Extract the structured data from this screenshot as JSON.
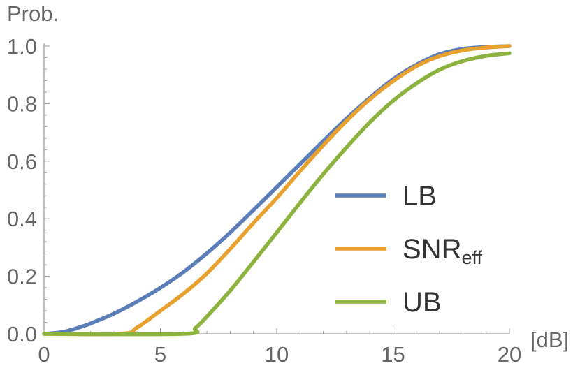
{
  "chart_data": {
    "type": "line",
    "title": "",
    "xlabel": "[dB]",
    "ylabel": "Prob.",
    "xlim": [
      0,
      20
    ],
    "ylim": [
      0,
      1
    ],
    "x_ticks": [
      "0",
      "5",
      "10",
      "15",
      "20"
    ],
    "y_ticks": [
      "0.0",
      "0.2",
      "0.4",
      "0.6",
      "0.8",
      "1.0"
    ],
    "legend_position": "right",
    "grid": false,
    "series": [
      {
        "name": "LB",
        "name_sub": "",
        "color": "#5B7DB8",
        "x": [
          0,
          0.5,
          1,
          1.5,
          2,
          3,
          4,
          5,
          6,
          7,
          8,
          9,
          10,
          11,
          12,
          13,
          14,
          15,
          16,
          17,
          18,
          19,
          20
        ],
        "y": [
          0.0,
          0.003,
          0.01,
          0.022,
          0.036,
          0.07,
          0.112,
          0.16,
          0.215,
          0.28,
          0.352,
          0.43,
          0.51,
          0.59,
          0.67,
          0.748,
          0.82,
          0.885,
          0.935,
          0.972,
          0.99,
          0.997,
          1.0
        ]
      },
      {
        "name": "SNR",
        "name_sub": "eff",
        "color": "#E8A02E",
        "x": [
          0,
          3.3,
          4,
          5,
          6,
          7,
          8,
          9,
          10,
          11,
          12,
          13,
          14,
          15,
          16,
          17,
          18,
          19,
          20
        ],
        "y": [
          0.0,
          0.0,
          0.022,
          0.08,
          0.14,
          0.21,
          0.295,
          0.385,
          0.472,
          0.565,
          0.655,
          0.74,
          0.815,
          0.878,
          0.93,
          0.965,
          0.985,
          0.995,
          1.0
        ]
      },
      {
        "name": "UB",
        "name_sub": "",
        "color": "#8DB33F",
        "x": [
          0,
          6,
          6.5,
          7,
          8,
          9,
          10,
          11,
          12,
          13,
          14,
          15,
          16,
          17,
          18,
          19,
          20
        ],
        "y": [
          0.0,
          0.0,
          0.02,
          0.06,
          0.15,
          0.25,
          0.352,
          0.455,
          0.555,
          0.648,
          0.735,
          0.81,
          0.87,
          0.918,
          0.948,
          0.966,
          0.975
        ]
      }
    ]
  }
}
